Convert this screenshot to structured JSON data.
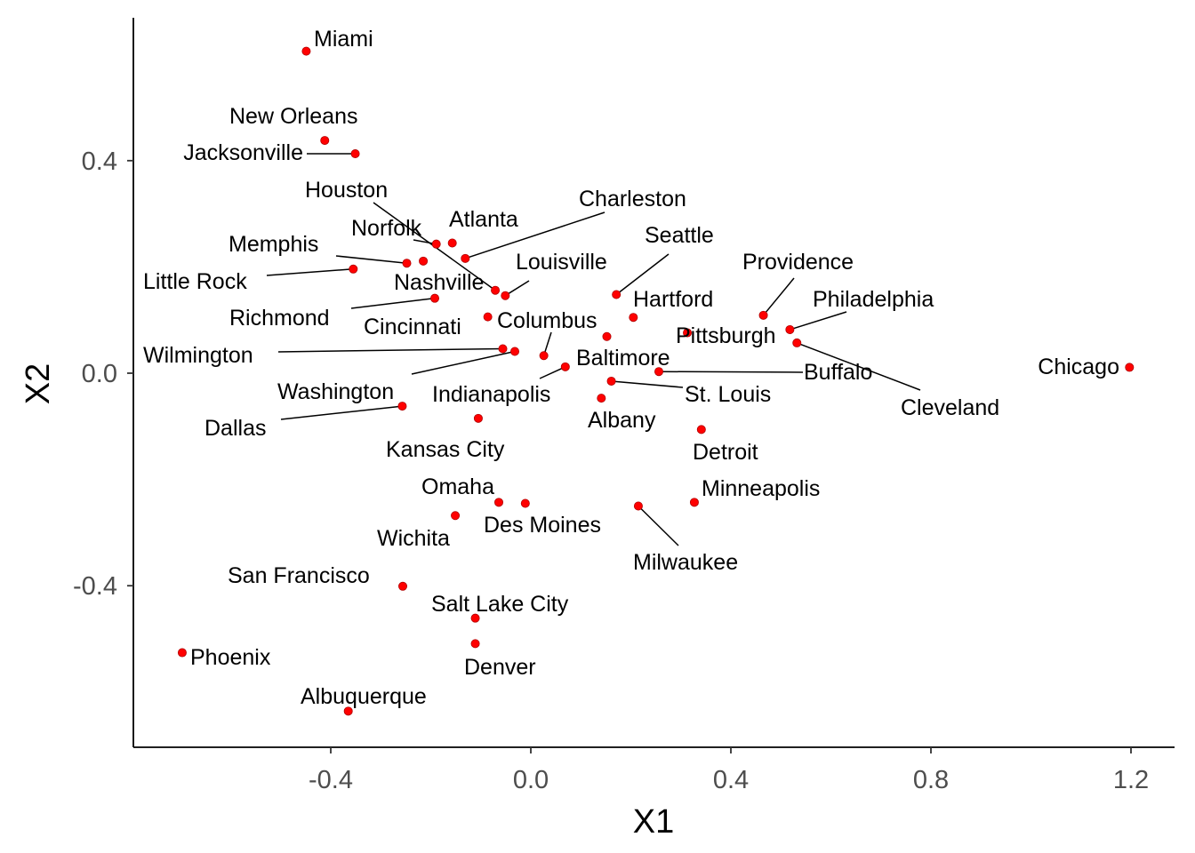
{
  "chart_data": {
    "type": "scatter",
    "title": "",
    "xlabel": "X1",
    "ylabel": "X2",
    "xlim": [
      -0.795,
      1.29
    ],
    "ylim": [
      -0.7,
      0.67
    ],
    "xticks": [
      -0.4,
      0.0,
      0.4,
      0.8,
      1.2
    ],
    "xtick_labels": [
      "-0.4",
      "0.0",
      "0.4",
      "0.8",
      "1.2"
    ],
    "yticks": [
      -0.4,
      0.0,
      0.4
    ],
    "ytick_labels": [
      "-0.4",
      "0.0",
      "0.4"
    ],
    "grid": false,
    "legend": "none",
    "point_color": "#ff0000",
    "points": [
      {
        "name": "Miami",
        "x": -0.449,
        "y": 0.606
      },
      {
        "name": "New Orleans",
        "x": -0.412,
        "y": 0.438
      },
      {
        "name": "Jacksonville",
        "x": -0.351,
        "y": 0.413
      },
      {
        "name": "Houston",
        "x": -0.071,
        "y": 0.156
      },
      {
        "name": "Norfolk",
        "x": -0.189,
        "y": 0.243
      },
      {
        "name": "Atlanta",
        "x": -0.157,
        "y": 0.245
      },
      {
        "name": "Charleston",
        "x": -0.131,
        "y": 0.216
      },
      {
        "name": "Memphis",
        "x": -0.248,
        "y": 0.207
      },
      {
        "name": "Little Rock",
        "x": -0.355,
        "y": 0.196
      },
      {
        "name": "Nashville",
        "x": -0.215,
        "y": 0.211
      },
      {
        "name": "Louisville",
        "x": -0.051,
        "y": 0.146
      },
      {
        "name": "Seattle",
        "x": 0.171,
        "y": 0.148
      },
      {
        "name": "Richmond",
        "x": -0.192,
        "y": 0.141
      },
      {
        "name": "Cincinnati",
        "x": -0.086,
        "y": 0.106
      },
      {
        "name": "Columbus",
        "x": 0.026,
        "y": 0.033
      },
      {
        "name": "Hartford",
        "x": 0.205,
        "y": 0.105
      },
      {
        "name": "Providence",
        "x": 0.465,
        "y": 0.109
      },
      {
        "name": "Philadelphia",
        "x": 0.518,
        "y": 0.082
      },
      {
        "name": "Pittsburgh",
        "x": 0.313,
        "y": 0.076
      },
      {
        "name": "Cleveland",
        "x": 0.532,
        "y": 0.057
      },
      {
        "name": "Wilmington",
        "x": -0.056,
        "y": 0.046
      },
      {
        "name": "Washington",
        "x": -0.032,
        "y": 0.041
      },
      {
        "name": "Baltimore",
        "x": 0.152,
        "y": 0.069
      },
      {
        "name": "Indianapolis",
        "x": 0.069,
        "y": 0.012
      },
      {
        "name": "Buffalo",
        "x": 0.256,
        "y": 0.003
      },
      {
        "name": "Chicago",
        "x": 1.197,
        "y": 0.011
      },
      {
        "name": "St. Louis",
        "x": 0.161,
        "y": -0.015
      },
      {
        "name": "Albany",
        "x": 0.141,
        "y": -0.047
      },
      {
        "name": "Dallas",
        "x": -0.257,
        "y": -0.062
      },
      {
        "name": "Kansas City",
        "x": -0.105,
        "y": -0.085
      },
      {
        "name": "Detroit",
        "x": 0.341,
        "y": -0.106
      },
      {
        "name": "Omaha",
        "x": -0.064,
        "y": -0.243
      },
      {
        "name": "Des Moines",
        "x": -0.011,
        "y": -0.245
      },
      {
        "name": "Minneapolis",
        "x": 0.327,
        "y": -0.243
      },
      {
        "name": "Wichita",
        "x": -0.151,
        "y": -0.268
      },
      {
        "name": "Milwaukee",
        "x": 0.215,
        "y": -0.25
      },
      {
        "name": "San Francisco",
        "x": -0.256,
        "y": -0.401
      },
      {
        "name": "Salt Lake City",
        "x": -0.111,
        "y": -0.461
      },
      {
        "name": "Phoenix",
        "x": -0.697,
        "y": -0.526
      },
      {
        "name": "Denver",
        "x": -0.111,
        "y": -0.509
      },
      {
        "name": "Albuquerque",
        "x": -0.365,
        "y": -0.636
      }
    ]
  }
}
